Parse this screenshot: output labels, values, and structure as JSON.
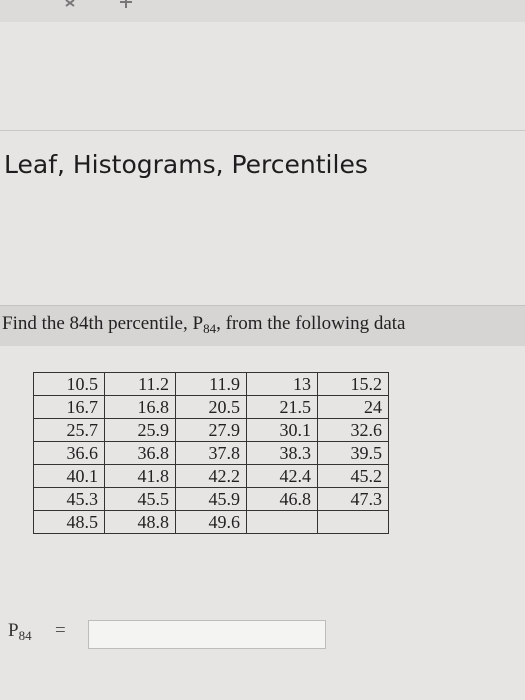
{
  "heading": "Leaf, Histograms, Percentiles",
  "question": {
    "before": "Find the 84th percentile, ",
    "symbol": "P",
    "subscript": "84",
    "after": ", from the following data"
  },
  "table": {
    "rows": [
      [
        10.5,
        11.2,
        11.9,
        13,
        15.2
      ],
      [
        16.7,
        16.8,
        20.5,
        21.5,
        24
      ],
      [
        25.7,
        25.9,
        27.9,
        30.1,
        32.6
      ],
      [
        36.6,
        36.8,
        37.8,
        38.3,
        39.5
      ],
      [
        40.1,
        41.8,
        42.2,
        42.4,
        45.2
      ],
      [
        45.3,
        45.5,
        45.9,
        46.8,
        47.3
      ],
      [
        48.5,
        48.8,
        49.6
      ]
    ]
  },
  "answer": {
    "symbol": "P",
    "subscript": "84",
    "equals": "="
  }
}
